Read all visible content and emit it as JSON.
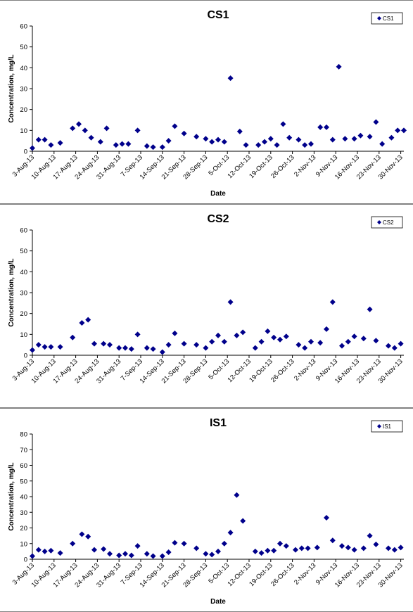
{
  "chart_data": [
    {
      "type": "scatter",
      "title": "CS1",
      "xlabel": "Date",
      "ylabel": "Concentration, mg/L",
      "ylim": [
        0,
        60
      ],
      "yticks": [
        "0",
        "10",
        "20",
        "30",
        "40",
        "50",
        "60"
      ],
      "xlim": [
        "2013-08-03",
        "2013-12-01"
      ],
      "xticks": [
        "3-Aug-13",
        "10-Aug-13",
        "17-Aug-13",
        "24-Aug-13",
        "31-Aug-13",
        "7-Sep-13",
        "14-Sep-13",
        "21-Sep-13",
        "28-Sep-13",
        "5-Oct-13",
        "12-Oct-13",
        "19-Oct-13",
        "26-Oct-13",
        "2-Nov-13",
        "9-Nov-13",
        "16-Nov-13",
        "23-Nov-13",
        "30-Nov-13"
      ],
      "grid": false,
      "legend_position": "top-right",
      "marker_color": "#00008B",
      "series": [
        {
          "name": "CS1",
          "x": [
            "2013-08-03",
            "2013-08-05",
            "2013-08-07",
            "2013-08-09",
            "2013-08-12",
            "2013-08-16",
            "2013-08-18",
            "2013-08-20",
            "2013-08-22",
            "2013-08-25",
            "2013-08-27",
            "2013-08-30",
            "2013-09-01",
            "2013-09-03",
            "2013-09-06",
            "2013-09-09",
            "2013-09-11",
            "2013-09-14",
            "2013-09-16",
            "2013-09-18",
            "2013-09-21",
            "2013-09-25",
            "2013-09-28",
            "2013-09-30",
            "2013-10-02",
            "2013-10-04",
            "2013-10-06",
            "2013-10-09",
            "2013-10-11",
            "2013-10-15",
            "2013-10-17",
            "2013-10-19",
            "2013-10-21",
            "2013-10-23",
            "2013-10-25",
            "2013-10-28",
            "2013-10-30",
            "2013-11-01",
            "2013-11-04",
            "2013-11-06",
            "2013-11-08",
            "2013-11-10",
            "2013-11-12",
            "2013-11-15",
            "2013-11-17",
            "2013-11-20",
            "2013-11-22",
            "2013-11-24",
            "2013-11-27",
            "2013-11-29",
            "2013-12-01"
          ],
          "values": [
            1.5,
            5.5,
            5.5,
            3,
            4,
            11,
            13,
            10,
            6.5,
            4.5,
            11,
            3,
            3.5,
            3.5,
            10,
            2.5,
            2,
            2,
            5,
            12,
            8.5,
            7,
            6,
            4.5,
            5.5,
            4.5,
            35,
            9.5,
            3,
            3,
            4.5,
            6,
            3,
            13,
            6.5,
            5.5,
            3,
            3.5,
            11.5,
            11.5,
            5.5,
            40.5,
            6,
            6,
            7.5,
            7,
            14,
            3.5,
            6.5,
            10,
            10
          ]
        }
      ]
    },
    {
      "type": "scatter",
      "title": "CS2",
      "xlabel": "",
      "ylabel": "Concentration, mg/L",
      "ylim": [
        0,
        60
      ],
      "yticks": [
        "0",
        "10",
        "20",
        "30",
        "40",
        "50",
        "60"
      ],
      "xlim": [
        "2013-08-03",
        "2013-12-01"
      ],
      "xticks": [
        "3-Aug-13",
        "10-Aug-13",
        "17-Aug-13",
        "24-Aug-13",
        "31-Aug-13",
        "7-Sep-13",
        "14-Sep-13",
        "21-Sep-13",
        "28-Sep-13",
        "5-Oct-13",
        "12-Oct-13",
        "19-Oct-13",
        "26-Oct-13",
        "2-Nov-13",
        "9-Nov-13",
        "16-Nov-13",
        "23-Nov-13",
        "30-Nov-13"
      ],
      "grid": false,
      "legend_position": "top-right",
      "marker_color": "#00008B",
      "series": [
        {
          "name": "CS2",
          "x": [
            "2013-08-03",
            "2013-08-05",
            "2013-08-07",
            "2013-08-09",
            "2013-08-12",
            "2013-08-16",
            "2013-08-19",
            "2013-08-21",
            "2013-08-23",
            "2013-08-26",
            "2013-08-28",
            "2013-08-31",
            "2013-09-02",
            "2013-09-04",
            "2013-09-06",
            "2013-09-09",
            "2013-09-11",
            "2013-09-14",
            "2013-09-16",
            "2013-09-18",
            "2013-09-21",
            "2013-09-25",
            "2013-09-28",
            "2013-09-30",
            "2013-10-02",
            "2013-10-04",
            "2013-10-06",
            "2013-10-08",
            "2013-10-10",
            "2013-10-14",
            "2013-10-16",
            "2013-10-18",
            "2013-10-20",
            "2013-10-22",
            "2013-10-24",
            "2013-10-28",
            "2013-10-30",
            "2013-11-01",
            "2013-11-04",
            "2013-11-06",
            "2013-11-08",
            "2013-11-11",
            "2013-11-13",
            "2013-11-15",
            "2013-11-18",
            "2013-11-20",
            "2013-11-22",
            "2013-11-26",
            "2013-11-28",
            "2013-11-30"
          ],
          "values": [
            2.5,
            5,
            4,
            4,
            4,
            8.5,
            15.5,
            17,
            5.5,
            5.5,
            5,
            3.5,
            3.5,
            3,
            10,
            3.5,
            3,
            1.5,
            5,
            10.5,
            5.5,
            5,
            3.5,
            6.5,
            9.5,
            6.5,
            25.5,
            9.5,
            11,
            3.5,
            6.5,
            11.5,
            8.5,
            7.5,
            9,
            5,
            3.5,
            6.5,
            6,
            12.5,
            25.5,
            4.5,
            6.5,
            9,
            8,
            22,
            7,
            4.5,
            3.5,
            5.5
          ]
        }
      ]
    },
    {
      "type": "scatter",
      "title": "IS1",
      "xlabel": "Date",
      "ylabel": "Concentration, mg/L",
      "ylim": [
        0,
        80
      ],
      "yticks": [
        "0",
        "10",
        "20",
        "30",
        "40",
        "50",
        "60",
        "70",
        "80"
      ],
      "xlim": [
        "2013-08-03",
        "2013-12-01"
      ],
      "xticks": [
        "3-Aug-13",
        "10-Aug-13",
        "17-Aug-13",
        "24-Aug-13",
        "31-Aug-13",
        "7-Sep-13",
        "14-Sep-13",
        "21-Sep-13",
        "28-Sep-13",
        "5-Oct-13",
        "12-Oct-13",
        "19-Oct-13",
        "26-Oct-13",
        "2-Nov-13",
        "9-Nov-13",
        "16-Nov-13",
        "23-Nov-13",
        "30-Nov-13"
      ],
      "grid": false,
      "legend_position": "top-right",
      "marker_color": "#00008B",
      "series": [
        {
          "name": "IS1",
          "x": [
            "2013-08-03",
            "2013-08-05",
            "2013-08-07",
            "2013-08-09",
            "2013-08-12",
            "2013-08-16",
            "2013-08-19",
            "2013-08-21",
            "2013-08-23",
            "2013-08-26",
            "2013-08-28",
            "2013-08-31",
            "2013-09-02",
            "2013-09-04",
            "2013-09-06",
            "2013-09-09",
            "2013-09-11",
            "2013-09-14",
            "2013-09-16",
            "2013-09-18",
            "2013-09-21",
            "2013-09-25",
            "2013-09-28",
            "2013-09-30",
            "2013-10-02",
            "2013-10-04",
            "2013-10-06",
            "2013-10-08",
            "2013-10-10",
            "2013-10-14",
            "2013-10-16",
            "2013-10-18",
            "2013-10-20",
            "2013-10-22",
            "2013-10-24",
            "2013-10-27",
            "2013-10-29",
            "2013-10-31",
            "2013-11-03",
            "2013-11-06",
            "2013-11-08",
            "2013-11-11",
            "2013-11-13",
            "2013-11-15",
            "2013-11-18",
            "2013-11-20",
            "2013-11-22",
            "2013-11-26",
            "2013-11-28",
            "2013-11-30"
          ],
          "values": [
            2,
            6,
            5,
            5.5,
            4,
            10,
            16,
            14.5,
            6,
            6.5,
            3.5,
            2.5,
            3.5,
            2.5,
            8.5,
            3.5,
            2,
            2,
            4.5,
            10.5,
            10,
            7,
            3.5,
            3,
            5,
            10,
            17,
            41,
            24.5,
            5,
            4,
            5.5,
            5.5,
            10,
            8.5,
            6,
            7,
            7,
            7.5,
            26.5,
            12,
            8.5,
            7.5,
            6,
            7,
            15,
            9.5,
            7,
            6,
            7.5
          ]
        }
      ]
    }
  ]
}
